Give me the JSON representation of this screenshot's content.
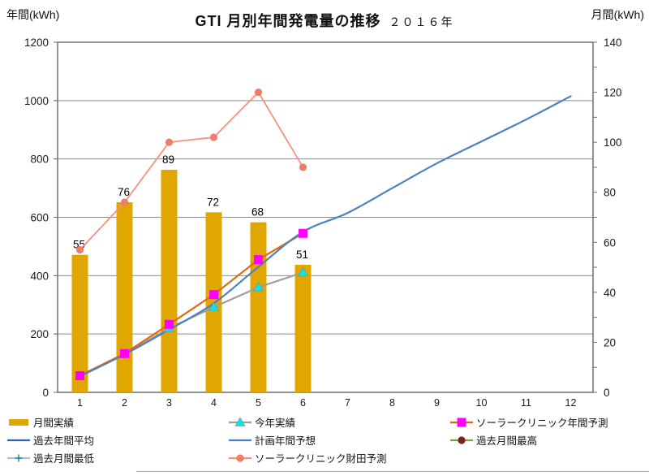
{
  "header": {
    "left_axis_unit": "年間(kWh)",
    "right_axis_unit": "月間(kWh)",
    "title_main": "GTI 月別年間発電量の推移",
    "title_year": "２０１６年"
  },
  "chart_data": {
    "type": "combo-bar-line",
    "categories": [
      "1",
      "2",
      "3",
      "4",
      "5",
      "6",
      "7",
      "8",
      "9",
      "10",
      "11",
      "12"
    ],
    "left_axis": {
      "label": "年間(kWh)",
      "min": 0,
      "max": 1200,
      "step": 200
    },
    "right_axis": {
      "label": "月間(kWh)",
      "min": 0,
      "max": 140,
      "step": 20,
      "minor_step": 10
    },
    "grid": "horizontal",
    "legend_position": "bottom",
    "series": [
      {
        "name": "月間実績",
        "type": "bar",
        "axis": "right",
        "color": "#DFA700",
        "values": [
          55,
          76,
          89,
          72,
          68,
          51
        ],
        "show_labels": true
      },
      {
        "name": "今年実績",
        "type": "line",
        "axis": "left",
        "color": "#9E9E9E",
        "marker": "triangle",
        "marker_color": "#00E8F0",
        "values": [
          55,
          131,
          220,
          292,
          360,
          411
        ]
      },
      {
        "name": "ソーラークリニック年間予測",
        "type": "line",
        "axis": "left",
        "color": "#E3690B",
        "marker": "square",
        "marker_color": "#FF00FF",
        "values": [
          57,
          133,
          233,
          335,
          455,
          545
        ]
      },
      {
        "name": "過去年間平均",
        "type": "line",
        "axis": "left",
        "color": "#3465A8",
        "marker": "none",
        "values": []
      },
      {
        "name": "計画年間予想",
        "type": "line",
        "axis": "left",
        "color": "#4D82BE",
        "marker": "none",
        "smooth": true,
        "values": [
          55,
          130,
          215,
          305,
          430,
          550,
          615,
          700,
          785,
          860,
          935,
          1015
        ]
      },
      {
        "name": "過去月間最高",
        "type": "line",
        "axis": "right",
        "color": "#76A842",
        "marker": "circle",
        "marker_color": "#7B2020",
        "values": []
      },
      {
        "name": "過去月間最低",
        "type": "line",
        "axis": "right",
        "color": "#9DC3E6",
        "marker": "plus",
        "marker_color": "#31859C",
        "values": []
      },
      {
        "name": "ソーラークリニック財田予測",
        "type": "line",
        "axis": "right",
        "color": "#F5917C",
        "marker": "circle",
        "marker_color": "#EF7D68",
        "values": [
          57,
          76,
          100,
          102,
          120,
          90
        ]
      }
    ]
  }
}
